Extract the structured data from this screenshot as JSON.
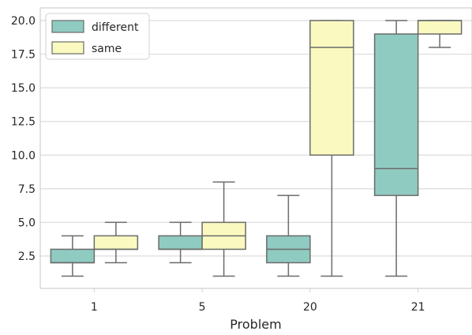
{
  "chart_data": {
    "type": "box",
    "xlabel": "Problem",
    "ylabel": "",
    "categories": [
      "1",
      "5",
      "20",
      "21"
    ],
    "ylim": [
      0,
      20.5
    ],
    "yticks": [
      2.5,
      5.0,
      7.5,
      10.0,
      12.5,
      15.0,
      17.5,
      20.0
    ],
    "ytick_labels": [
      "2.5",
      "5.0",
      "7.5",
      "10.0",
      "12.5",
      "15.0",
      "17.5",
      "20.0"
    ],
    "grid": true,
    "legend_position": "top-left",
    "series": [
      {
        "name": "different",
        "color": "#8fcbc0",
        "boxes": [
          {
            "whisker_low": 1,
            "q1": 2,
            "median": 2,
            "q3": 3,
            "whisker_high": 4
          },
          {
            "whisker_low": 2,
            "q1": 3,
            "median": 3,
            "q3": 4,
            "whisker_high": 5
          },
          {
            "whisker_low": 1,
            "q1": 2,
            "median": 3,
            "q3": 4,
            "whisker_high": 7
          },
          {
            "whisker_low": 1,
            "q1": 7,
            "median": 9,
            "q3": 19,
            "whisker_high": 20
          }
        ]
      },
      {
        "name": "same",
        "color": "#fafac0",
        "boxes": [
          {
            "whisker_low": 2,
            "q1": 3,
            "median": 3,
            "q3": 4,
            "whisker_high": 5
          },
          {
            "whisker_low": 1,
            "q1": 3,
            "median": 4,
            "q3": 5,
            "whisker_high": 8
          },
          {
            "whisker_low": 1,
            "q1": 10,
            "median": 18,
            "q3": 20,
            "whisker_high": 20
          },
          {
            "whisker_low": 18,
            "q1": 19,
            "median": 20,
            "q3": 20,
            "whisker_high": 20
          }
        ]
      }
    ],
    "line_color": "#6b6b6b",
    "grid_color": "#dcdcdc"
  }
}
